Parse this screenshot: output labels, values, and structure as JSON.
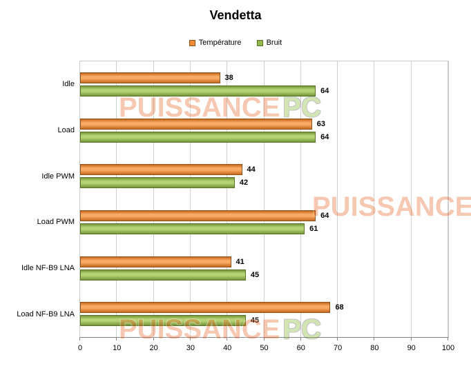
{
  "title": "Vendetta",
  "watermark": {
    "name": "PUISSANCE",
    "suffix": "PC"
  },
  "chart_data": {
    "type": "bar",
    "orientation": "horizontal",
    "title": "Vendetta",
    "xlabel": "",
    "ylabel": "",
    "xlim": [
      0,
      100
    ],
    "xticks": [
      0,
      10,
      20,
      30,
      40,
      50,
      60,
      70,
      80,
      90,
      100
    ],
    "grid": true,
    "legend_position": "top",
    "categories": [
      "Idle",
      "Load",
      "Idle PWM",
      "Load PWM",
      "Idle NF-B9 LNA",
      "Load NF-B9 LNA"
    ],
    "series": [
      {
        "name": "Température",
        "values": [
          38,
          63,
          44,
          64,
          41,
          68
        ],
        "color": "#ef8b39",
        "color_light": "#f9ab66",
        "color_dark": "#c8691d",
        "border": "#8e5016"
      },
      {
        "name": "Bruit",
        "values": [
          64,
          64,
          42,
          61,
          45,
          45
        ],
        "color": "#93b94c",
        "color_light": "#b5d374",
        "color_dark": "#74953a",
        "border": "#597325"
      }
    ]
  }
}
